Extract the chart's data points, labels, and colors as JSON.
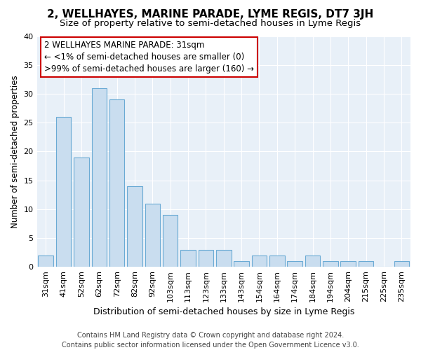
{
  "title": "2, WELLHAYES, MARINE PARADE, LYME REGIS, DT7 3JH",
  "subtitle": "Size of property relative to semi-detached houses in Lyme Regis",
  "xlabel": "Distribution of semi-detached houses by size in Lyme Regis",
  "ylabel": "Number of semi-detached properties",
  "categories": [
    "31sqm",
    "41sqm",
    "52sqm",
    "62sqm",
    "72sqm",
    "82sqm",
    "92sqm",
    "103sqm",
    "113sqm",
    "123sqm",
    "133sqm",
    "143sqm",
    "154sqm",
    "164sqm",
    "174sqm",
    "184sqm",
    "194sqm",
    "204sqm",
    "215sqm",
    "225sqm",
    "235sqm"
  ],
  "values": [
    2,
    26,
    19,
    31,
    29,
    14,
    11,
    9,
    3,
    3,
    3,
    1,
    2,
    2,
    1,
    2,
    1,
    1,
    1,
    0,
    1
  ],
  "bar_color": "#c9ddef",
  "bar_edgecolor": "#6aaad4",
  "annotation_line1": "2 WELLHAYES MARINE PARADE: 31sqm",
  "annotation_line2": "← <1% of semi-detached houses are smaller (0)",
  "annotation_line3": ">99% of semi-detached houses are larger (160) →",
  "annotation_box_facecolor": "#ffffff",
  "annotation_box_edgecolor": "#cc0000",
  "ylim": [
    0,
    40
  ],
  "yticks": [
    0,
    5,
    10,
    15,
    20,
    25,
    30,
    35,
    40
  ],
  "footer_line1": "Contains HM Land Registry data © Crown copyright and database right 2024.",
  "footer_line2": "Contains public sector information licensed under the Open Government Licence v3.0.",
  "bg_color": "#ffffff",
  "plot_bg_color": "#e8f0f8",
  "grid_color": "#ffffff",
  "title_fontsize": 11,
  "subtitle_fontsize": 9.5,
  "xlabel_fontsize": 9,
  "ylabel_fontsize": 8.5,
  "tick_fontsize": 8,
  "footer_fontsize": 7,
  "annotation_fontsize": 8.5
}
